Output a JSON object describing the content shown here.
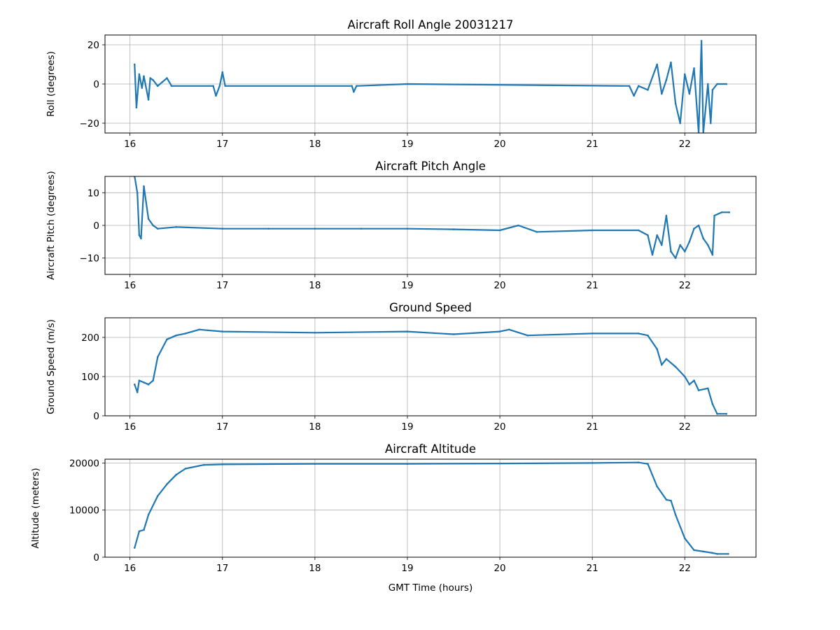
{
  "chart_data": [
    {
      "type": "line",
      "title": "Aircraft Roll Angle 20031217",
      "xlabel": "",
      "ylabel": "Roll (degrees)",
      "xlim": [
        15.73,
        22.77
      ],
      "ylim": [
        -25,
        25
      ],
      "xticks": [
        16,
        17,
        18,
        19,
        20,
        21,
        22
      ],
      "yticks": [
        -20,
        0,
        20
      ],
      "grid": true,
      "color": "#1f77b4",
      "series": [
        {
          "name": "roll",
          "x": [
            16.05,
            16.07,
            16.1,
            16.13,
            16.15,
            16.2,
            16.22,
            16.25,
            16.3,
            16.35,
            16.4,
            16.45,
            16.9,
            16.93,
            16.97,
            17.0,
            17.03,
            18.4,
            18.42,
            18.45,
            19.0,
            21.4,
            21.45,
            21.5,
            21.6,
            21.7,
            21.75,
            21.8,
            21.85,
            21.9,
            21.95,
            22.0,
            22.05,
            22.1,
            22.15,
            22.18,
            22.2,
            22.25,
            22.28,
            22.3,
            22.35,
            22.45
          ],
          "y": [
            10,
            -12,
            5,
            -2,
            4,
            -8,
            3,
            2,
            -1,
            1,
            3,
            -1,
            -1,
            -6,
            -1,
            6,
            -1,
            -1,
            -4,
            -1,
            0,
            -1,
            -6,
            -1,
            -3,
            10,
            -5,
            2,
            11,
            -10,
            -20,
            5,
            -5,
            8,
            -25,
            22,
            -25,
            0,
            -20,
            -3,
            0,
            0
          ]
        }
      ]
    },
    {
      "type": "line",
      "title": "Aircraft Pitch Angle",
      "xlabel": "",
      "ylabel": "Aircraft Pitch (degrees)",
      "xlim": [
        15.73,
        22.77
      ],
      "ylim": [
        -15,
        15
      ],
      "xticks": [
        16,
        17,
        18,
        19,
        20,
        21,
        22
      ],
      "yticks": [
        -10,
        0,
        10
      ],
      "grid": true,
      "color": "#1f77b4",
      "series": [
        {
          "name": "pitch",
          "x": [
            16.05,
            16.08,
            16.1,
            16.12,
            16.15,
            16.2,
            16.25,
            16.3,
            16.5,
            17,
            17.5,
            18,
            18.5,
            19,
            19.5,
            20,
            20.2,
            20.4,
            21,
            21.5,
            21.6,
            21.65,
            21.7,
            21.75,
            21.8,
            21.85,
            21.9,
            21.95,
            22.0,
            22.05,
            22.1,
            22.15,
            22.2,
            22.25,
            22.3,
            22.32,
            22.4,
            22.48
          ],
          "y": [
            15,
            10,
            -3,
            -4,
            12,
            2,
            0,
            -1,
            -0.5,
            -1,
            -1,
            -1,
            -1,
            -1,
            -1.2,
            -1.5,
            0,
            -2,
            -1.5,
            -1.5,
            -3,
            -9,
            -3,
            -6,
            3,
            -8,
            -10,
            -6,
            -8,
            -5,
            -1,
            0,
            -4,
            -6,
            -9,
            3,
            4,
            4
          ]
        }
      ]
    },
    {
      "type": "line",
      "title": "Ground Speed",
      "xlabel": "",
      "ylabel": "Ground Speed (m/s)",
      "xlim": [
        15.73,
        22.77
      ],
      "ylim": [
        0,
        250
      ],
      "xticks": [
        16,
        17,
        18,
        19,
        20,
        21,
        22
      ],
      "yticks": [
        0,
        100,
        200
      ],
      "grid": true,
      "color": "#1f77b4",
      "series": [
        {
          "name": "speed",
          "x": [
            16.05,
            16.08,
            16.1,
            16.15,
            16.2,
            16.25,
            16.3,
            16.4,
            16.5,
            16.6,
            16.75,
            17,
            18,
            19,
            19.5,
            20,
            20.1,
            20.3,
            21,
            21.5,
            21.6,
            21.7,
            21.75,
            21.8,
            21.9,
            22,
            22.05,
            22.1,
            22.15,
            22.25,
            22.3,
            22.35,
            22.45
          ],
          "y": [
            80,
            60,
            90,
            85,
            80,
            90,
            150,
            195,
            205,
            210,
            220,
            215,
            212,
            215,
            208,
            215,
            220,
            205,
            210,
            210,
            205,
            170,
            130,
            145,
            125,
            100,
            80,
            90,
            65,
            70,
            30,
            5,
            5
          ]
        }
      ]
    },
    {
      "type": "line",
      "title": "Aircraft Altitude",
      "xlabel": "GMT Time (hours)",
      "ylabel": "Altitude (meters)",
      "xlim": [
        15.73,
        22.77
      ],
      "ylim": [
        0,
        20800
      ],
      "xticks": [
        16,
        17,
        18,
        19,
        20,
        21,
        22
      ],
      "yticks": [
        0,
        10000,
        20000
      ],
      "grid": true,
      "color": "#1f77b4",
      "series": [
        {
          "name": "altitude",
          "x": [
            16.05,
            16.1,
            16.15,
            16.2,
            16.3,
            16.4,
            16.5,
            16.6,
            16.8,
            17,
            18,
            19,
            20,
            21,
            21.5,
            21.6,
            21.7,
            21.8,
            21.85,
            21.9,
            22,
            22.1,
            22.2,
            22.3,
            22.35,
            22.47
          ],
          "y": [
            2000,
            5500,
            5800,
            9000,
            13000,
            15500,
            17500,
            18800,
            19600,
            19700,
            19800,
            19800,
            19900,
            20000,
            20100,
            19800,
            15000,
            12200,
            12000,
            9000,
            4000,
            1500,
            1200,
            900,
            700,
            700
          ]
        }
      ]
    }
  ]
}
